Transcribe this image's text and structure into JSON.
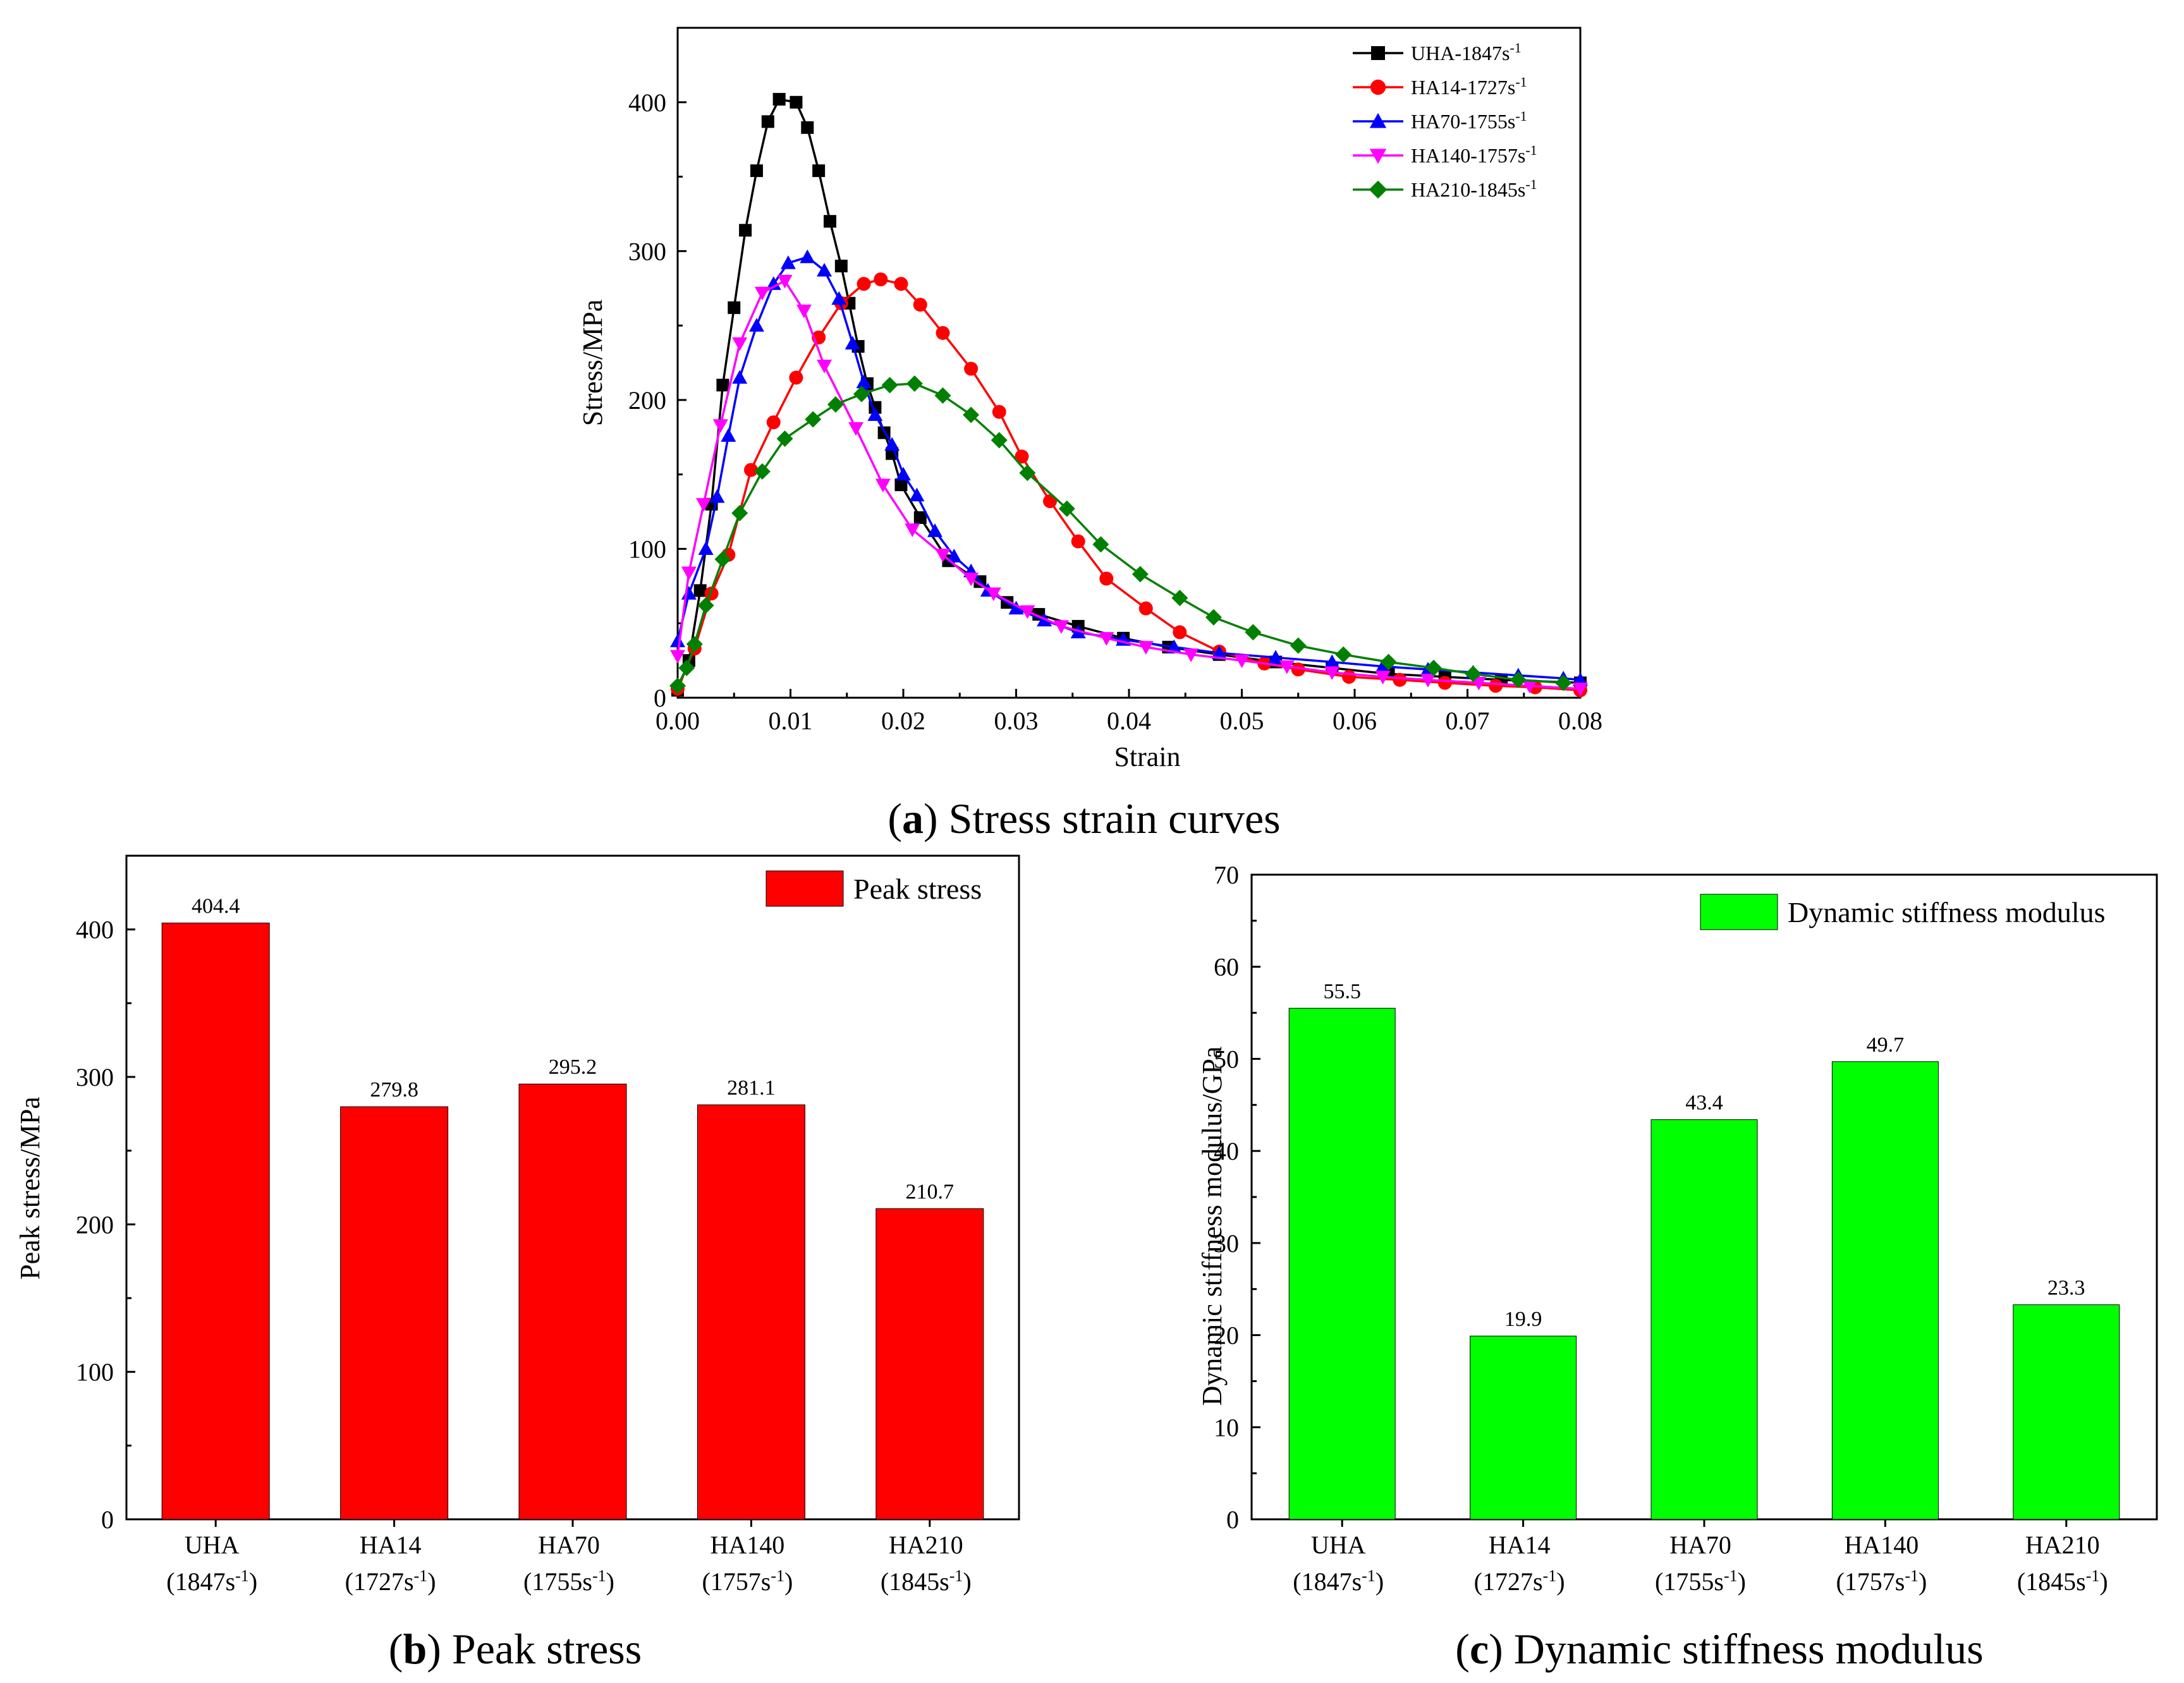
{
  "captions": {
    "a": {
      "letter": "a",
      "text": " Stress strain curves"
    },
    "b": {
      "letter": "b",
      "text": " Peak stress"
    },
    "c": {
      "letter": "c",
      "text": " Dynamic stiffness modulus"
    }
  },
  "chart_data": [
    {
      "id": "a",
      "type": "line",
      "xlabel": "Strain",
      "ylabel": "Stress/MPa",
      "xlim": [
        0.0,
        0.08
      ],
      "ylim": [
        0,
        450
      ],
      "xticks": [
        "0.00",
        "0.01",
        "0.02",
        "0.03",
        "0.04",
        "0.05",
        "0.06",
        "0.07",
        "0.08"
      ],
      "yticks": [
        "0",
        "100",
        "200",
        "300",
        "400"
      ],
      "legend_position": "top-right",
      "series": [
        {
          "name": "UHA-1847s",
          "rate_sup": "-1",
          "color": "#000000",
          "marker": "square",
          "x": [
            0.0,
            0.001,
            0.002,
            0.003,
            0.004,
            0.005,
            0.006,
            0.007,
            0.008,
            0.009,
            0.0105,
            0.0115,
            0.0125,
            0.0135,
            0.0145,
            0.0152,
            0.016,
            0.0168,
            0.0175,
            0.0183,
            0.019,
            0.0198,
            0.0215,
            0.024,
            0.0268,
            0.0292,
            0.032,
            0.0355,
            0.0395,
            0.0435,
            0.048,
            0.053,
            0.058,
            0.063,
            0.068,
            0.073,
            0.08
          ],
          "y": [
            5,
            25,
            72,
            130,
            210,
            262,
            314,
            354,
            387,
            402,
            400,
            383,
            354,
            320,
            290,
            265,
            236,
            211,
            195,
            178,
            164,
            143,
            121,
            92,
            78,
            64,
            56,
            48,
            40,
            34,
            29,
            24,
            20,
            16,
            14,
            12,
            10
          ]
        },
        {
          "name": "HA14-1727s",
          "rate_sup": "-1",
          "color": "#ff0000",
          "marker": "circle",
          "x": [
            0.0,
            0.0015,
            0.003,
            0.0045,
            0.0065,
            0.0085,
            0.0105,
            0.0125,
            0.0145,
            0.0165,
            0.018,
            0.0198,
            0.0215,
            0.0235,
            0.026,
            0.0285,
            0.0305,
            0.033,
            0.0355,
            0.038,
            0.0415,
            0.0445,
            0.048,
            0.052,
            0.055,
            0.0595,
            0.064,
            0.068,
            0.0725,
            0.076,
            0.08
          ],
          "y": [
            6,
            33,
            70,
            96,
            153,
            185,
            215,
            242,
            265,
            278,
            281,
            278,
            264,
            245,
            221,
            192,
            162,
            132,
            105,
            80,
            60,
            44,
            31,
            23,
            19,
            14,
            12,
            10,
            8,
            7,
            5
          ]
        },
        {
          "name": "HA70-1755s",
          "rate_sup": "-1",
          "color": "#0000ff",
          "marker": "triangle-up",
          "x": [
            0.0,
            0.001,
            0.0025,
            0.0035,
            0.0045,
            0.0055,
            0.007,
            0.0085,
            0.0098,
            0.0115,
            0.013,
            0.0143,
            0.0155,
            0.0165,
            0.0175,
            0.019,
            0.02,
            0.0212,
            0.0228,
            0.0245,
            0.026,
            0.0275,
            0.03,
            0.0325,
            0.0355,
            0.0395,
            0.044,
            0.048,
            0.053,
            0.058,
            0.0625,
            0.0665,
            0.0705,
            0.0745,
            0.0785,
            0.08
          ],
          "y": [
            38,
            70,
            100,
            135,
            176,
            215,
            250,
            278,
            292,
            296,
            287,
            268,
            238,
            212,
            190,
            170,
            150,
            136,
            112,
            95,
            85,
            72,
            60,
            52,
            44,
            39,
            34,
            30,
            27,
            24,
            21,
            19,
            17,
            15,
            13,
            12
          ]
        },
        {
          "name": "HA140-1757s",
          "rate_sup": "-1",
          "color": "#ff00ff",
          "marker": "triangle-down",
          "x": [
            0.0,
            0.001,
            0.0023,
            0.0038,
            0.0055,
            0.0075,
            0.0095,
            0.0112,
            0.013,
            0.0158,
            0.0182,
            0.0208,
            0.0235,
            0.026,
            0.028,
            0.031,
            0.034,
            0.038,
            0.0415,
            0.0455,
            0.05,
            0.054,
            0.058,
            0.0625,
            0.0665,
            0.071,
            0.0755,
            0.08
          ],
          "y": [
            28,
            84,
            130,
            183,
            238,
            272,
            280,
            260,
            223,
            181,
            143,
            113,
            96,
            80,
            70,
            58,
            48,
            40,
            34,
            29,
            25,
            21,
            17,
            14,
            12,
            10,
            8,
            6
          ]
        },
        {
          "name": "HA210-1845s",
          "rate_sup": "-1",
          "color": "#008000",
          "marker": "diamond",
          "x": [
            0.0,
            0.0008,
            0.0015,
            0.0025,
            0.004,
            0.0055,
            0.0075,
            0.0095,
            0.012,
            0.014,
            0.0163,
            0.0188,
            0.021,
            0.0235,
            0.026,
            0.0285,
            0.031,
            0.0345,
            0.0375,
            0.041,
            0.0445,
            0.0475,
            0.051,
            0.055,
            0.059,
            0.063,
            0.067,
            0.0705,
            0.0745,
            0.0785
          ],
          "y": [
            8,
            20,
            36,
            62,
            93,
            124,
            152,
            174,
            187,
            197,
            204,
            210,
            211,
            203,
            190,
            173,
            151,
            127,
            103,
            83,
            67,
            54,
            44,
            35,
            29,
            24,
            20,
            16,
            12,
            10
          ]
        }
      ]
    },
    {
      "id": "b",
      "type": "bar",
      "ylabel": "Peak stress/MPa",
      "ylim": [
        0,
        450
      ],
      "yticks": [
        "0",
        "100",
        "200",
        "300",
        "400"
      ],
      "categories": [
        {
          "name": "UHA",
          "rate": "(1847s",
          "sup": "-1",
          "close": ")"
        },
        {
          "name": "HA14",
          "rate": "(1727s",
          "sup": "-1",
          "close": ")"
        },
        {
          "name": "HA70",
          "rate": "(1755s",
          "sup": "-1",
          "close": ")"
        },
        {
          "name": "HA140",
          "rate": "(1757s",
          "sup": "-1",
          "close": ")"
        },
        {
          "name": "HA210",
          "rate": "(1845s",
          "sup": "-1",
          "close": ")"
        }
      ],
      "values": [
        404.4,
        279.8,
        295.2,
        281.1,
        210.7
      ],
      "value_labels": [
        "404.4",
        "279.8",
        "295.2",
        "281.1",
        "210.7"
      ],
      "color": "#ff0000",
      "legend": "Peak stress",
      "legend_position": "top-right"
    },
    {
      "id": "c",
      "type": "bar",
      "ylabel": "Dynamic stiffness modulus/GPa",
      "ylim": [
        0,
        70
      ],
      "yticks": [
        "0",
        "10",
        "20",
        "30",
        "40",
        "50",
        "60",
        "70"
      ],
      "categories": [
        {
          "name": "UHA",
          "rate": "(1847s",
          "sup": "-1",
          "close": ")"
        },
        {
          "name": "HA14",
          "rate": "(1727s",
          "sup": "-1",
          "close": ")"
        },
        {
          "name": "HA70",
          "rate": "(1755s",
          "sup": "-1",
          "close": ")"
        },
        {
          "name": "HA140",
          "rate": "(1757s",
          "sup": "-1",
          "close": ")"
        },
        {
          "name": "HA210",
          "rate": "(1845s",
          "sup": "-1",
          "close": ")"
        }
      ],
      "values": [
        55.5,
        19.9,
        43.4,
        49.7,
        23.3
      ],
      "value_labels": [
        "55.5",
        "19.9",
        "43.4",
        "49.7",
        "23.3"
      ],
      "color": "#00ff00",
      "legend": "Dynamic stiffness modulus",
      "legend_position": "top-right"
    }
  ]
}
